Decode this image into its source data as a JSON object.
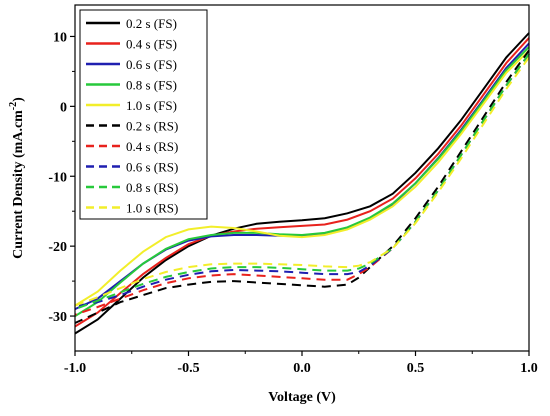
{
  "chart_data": {
    "type": "line",
    "title": "",
    "xlabel": "Voltage (V)",
    "ylabel": {
      "main": "Current Density (mA.cm",
      "sup": "-2",
      "close": ")"
    },
    "xlim": [
      -1.0,
      1.0
    ],
    "ylim": [
      -35,
      14.5
    ],
    "x_ticks": [
      "-1.0",
      "-0.5",
      "0.0",
      "0.5",
      "1.0"
    ],
    "x_tick_values": [
      -1.0,
      -0.5,
      0.0,
      0.5,
      1.0
    ],
    "y_ticks": [
      "10",
      "0",
      "-10",
      "-20",
      "-30"
    ],
    "y_tick_values": [
      10,
      0,
      -10,
      -20,
      -30
    ],
    "legend_position": "top-left",
    "series": [
      {
        "name": "0.2 s (FS)",
        "color": "#000000",
        "dash": "solid",
        "x": [
          -1.0,
          -0.9,
          -0.8,
          -0.7,
          -0.6,
          -0.5,
          -0.4,
          -0.3,
          -0.2,
          -0.1,
          0.0,
          0.1,
          0.2,
          0.3,
          0.4,
          0.5,
          0.6,
          0.7,
          0.8,
          0.9,
          1.0
        ],
        "y": [
          -32.5,
          -30.5,
          -27.5,
          -24.5,
          -22.0,
          -20.0,
          -18.5,
          -17.5,
          -16.8,
          -16.5,
          -16.3,
          -16.0,
          -15.3,
          -14.3,
          -12.5,
          -9.5,
          -6.0,
          -2.0,
          2.5,
          7.0,
          10.5
        ]
      },
      {
        "name": "0.4 s (FS)",
        "color": "#e8221d",
        "dash": "solid",
        "x": [
          -1.0,
          -0.9,
          -0.8,
          -0.7,
          -0.6,
          -0.5,
          -0.4,
          -0.3,
          -0.2,
          -0.1,
          0.0,
          0.1,
          0.2,
          0.3,
          0.4,
          0.5,
          0.6,
          0.7,
          0.8,
          0.9,
          1.0
        ],
        "y": [
          -31.5,
          -29.5,
          -26.7,
          -24.0,
          -21.7,
          -19.7,
          -18.5,
          -17.9,
          -17.5,
          -17.3,
          -17.1,
          -16.9,
          -16.2,
          -15.0,
          -13.2,
          -10.3,
          -6.8,
          -2.8,
          1.7,
          6.2,
          9.8
        ]
      },
      {
        "name": "0.6 s (FS)",
        "color": "#1f1fb0",
        "dash": "solid",
        "x": [
          -1.0,
          -0.9,
          -0.8,
          -0.7,
          -0.6,
          -0.5,
          -0.4,
          -0.3,
          -0.2,
          -0.1,
          0.0,
          0.1,
          0.2,
          0.3,
          0.4,
          0.5,
          0.6,
          0.7,
          0.8,
          0.9,
          1.0
        ],
        "y": [
          -29.0,
          -27.5,
          -25.0,
          -22.5,
          -20.5,
          -19.2,
          -18.6,
          -18.4,
          -18.4,
          -18.5,
          -18.5,
          -18.2,
          -17.4,
          -16.0,
          -14.0,
          -11.0,
          -7.4,
          -3.4,
          1.0,
          5.5,
          9.0
        ]
      },
      {
        "name": "0.8 s (FS)",
        "color": "#27c93b",
        "dash": "solid",
        "x": [
          -1.0,
          -0.9,
          -0.8,
          -0.7,
          -0.6,
          -0.5,
          -0.4,
          -0.3,
          -0.2,
          -0.1,
          0.0,
          0.1,
          0.2,
          0.3,
          0.4,
          0.5,
          0.6,
          0.7,
          0.8,
          0.9,
          1.0
        ],
        "y": [
          -30.0,
          -28.0,
          -25.2,
          -22.5,
          -20.4,
          -19.0,
          -18.4,
          -18.1,
          -18.1,
          -18.3,
          -18.4,
          -18.1,
          -17.3,
          -15.9,
          -13.9,
          -11.0,
          -7.5,
          -3.6,
          0.8,
          5.2,
          8.5
        ]
      },
      {
        "name": "1.0 s (FS)",
        "color": "#f2ee2a",
        "dash": "solid",
        "x": [
          -1.0,
          -0.9,
          -0.8,
          -0.7,
          -0.6,
          -0.5,
          -0.4,
          -0.3,
          -0.2,
          -0.1,
          0.0,
          0.1,
          0.2,
          0.3,
          0.4,
          0.5,
          0.6,
          0.7,
          0.8,
          0.9,
          1.0
        ],
        "y": [
          -28.5,
          -26.5,
          -23.5,
          -20.8,
          -18.7,
          -17.6,
          -17.2,
          -17.4,
          -17.9,
          -18.5,
          -18.7,
          -18.4,
          -17.6,
          -16.2,
          -14.3,
          -11.5,
          -8.0,
          -4.0,
          0.4,
          4.8,
          8.0
        ]
      },
      {
        "name": "0.2 s (RS)",
        "color": "#000000",
        "dash": "dashed",
        "x": [
          1.0,
          0.9,
          0.8,
          0.7,
          0.6,
          0.5,
          0.4,
          0.3,
          0.25,
          0.2,
          0.1,
          0.0,
          -0.1,
          -0.2,
          -0.3,
          -0.4,
          -0.5,
          -0.6,
          -0.7,
          -0.8,
          -0.9,
          -1.0
        ],
        "y": [
          8.0,
          3.5,
          -1.5,
          -6.5,
          -11.5,
          -16.0,
          -20.0,
          -23.0,
          -24.5,
          -25.5,
          -25.8,
          -25.6,
          -25.4,
          -25.2,
          -25.0,
          -25.1,
          -25.5,
          -26.0,
          -27.0,
          -28.0,
          -29.5,
          -31.0
        ]
      },
      {
        "name": "0.4 s (RS)",
        "color": "#e8221d",
        "dash": "dashed",
        "x": [
          1.0,
          0.9,
          0.8,
          0.7,
          0.6,
          0.5,
          0.4,
          0.3,
          0.25,
          0.2,
          0.1,
          0.0,
          -0.1,
          -0.2,
          -0.3,
          -0.4,
          -0.5,
          -0.6,
          -0.7,
          -0.8,
          -0.9,
          -1.0
        ],
        "y": [
          7.5,
          3.0,
          -2.0,
          -7.0,
          -12.0,
          -16.5,
          -20.3,
          -23.0,
          -24.0,
          -24.8,
          -24.8,
          -24.6,
          -24.4,
          -24.2,
          -24.0,
          -24.2,
          -24.6,
          -25.3,
          -26.3,
          -27.5,
          -28.7,
          -29.8
        ]
      },
      {
        "name": "0.6 s (RS)",
        "color": "#1f1fb0",
        "dash": "dashed",
        "x": [
          1.0,
          0.9,
          0.8,
          0.7,
          0.6,
          0.5,
          0.4,
          0.3,
          0.25,
          0.2,
          0.1,
          0.0,
          -0.1,
          -0.2,
          -0.3,
          -0.4,
          -0.5,
          -0.6,
          -0.7,
          -0.8,
          -0.9,
          -1.0
        ],
        "y": [
          7.5,
          3.0,
          -2.0,
          -7.0,
          -12.0,
          -16.5,
          -20.3,
          -22.8,
          -23.7,
          -24.0,
          -24.0,
          -23.8,
          -23.6,
          -23.5,
          -23.4,
          -23.6,
          -24.1,
          -24.8,
          -25.8,
          -27.0,
          -28.0,
          -28.6
        ]
      },
      {
        "name": "0.8 s (RS)",
        "color": "#27c93b",
        "dash": "dashed",
        "x": [
          1.0,
          0.9,
          0.8,
          0.7,
          0.6,
          0.5,
          0.4,
          0.3,
          0.25,
          0.2,
          0.1,
          0.0,
          -0.1,
          -0.2,
          -0.3,
          -0.4,
          -0.5,
          -0.6,
          -0.7,
          -0.8,
          -0.9,
          -1.0
        ],
        "y": [
          7.5,
          3.0,
          -2.0,
          -7.0,
          -12.0,
          -16.5,
          -20.3,
          -22.5,
          -23.2,
          -23.5,
          -23.5,
          -23.3,
          -23.1,
          -23.0,
          -23.0,
          -23.2,
          -23.7,
          -24.4,
          -25.4,
          -26.6,
          -27.8,
          -29.0
        ]
      },
      {
        "name": "1.0 s (RS)",
        "color": "#f2ee2a",
        "dash": "dashed",
        "x": [
          1.0,
          0.9,
          0.8,
          0.7,
          0.6,
          0.5,
          0.4,
          0.3,
          0.25,
          0.2,
          0.1,
          0.0,
          -0.1,
          -0.2,
          -0.3,
          -0.4,
          -0.5,
          -0.6,
          -0.7,
          -0.8,
          -0.9,
          -1.0
        ],
        "y": [
          7.0,
          2.5,
          -2.5,
          -7.5,
          -12.3,
          -16.7,
          -20.3,
          -22.3,
          -22.8,
          -23.0,
          -22.9,
          -22.7,
          -22.6,
          -22.5,
          -22.5,
          -22.6,
          -23.0,
          -23.7,
          -24.7,
          -26.0,
          -27.3,
          -28.5
        ]
      }
    ]
  }
}
